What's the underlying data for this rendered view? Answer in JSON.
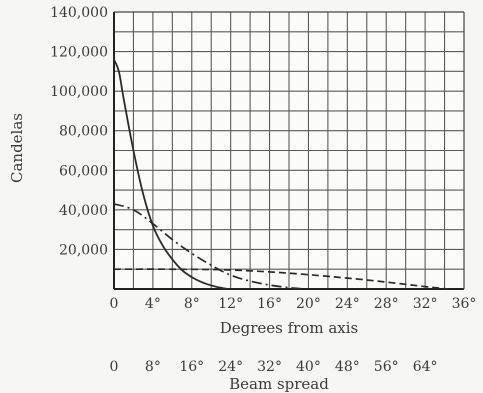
{
  "chart_data": {
    "type": "line",
    "title": "",
    "xlabel": "Degrees from axis",
    "ylabel": "Candelas",
    "secondary_xlabel": "Beam spread",
    "xlim": [
      0,
      36
    ],
    "ylim": [
      0,
      140000
    ],
    "x_ticks": [
      "0",
      "4°",
      "8°",
      "12°",
      "16°",
      "20°",
      "24°",
      "28°",
      "32°",
      "36°"
    ],
    "x_tick_values": [
      0,
      4,
      8,
      12,
      16,
      20,
      24,
      28,
      32,
      36
    ],
    "y_ticks": [
      "20,000",
      "40,000",
      "60,000",
      "80,000",
      "100,000",
      "120,000",
      "140,000"
    ],
    "y_tick_values": [
      20000,
      40000,
      60000,
      80000,
      100000,
      120000,
      140000
    ],
    "secondary_x_ticks": [
      "0",
      "8°",
      "16°",
      "24°",
      "32°",
      "40°",
      "48°",
      "56°",
      "64°"
    ],
    "secondary_x_tick_values": [
      0,
      4,
      8,
      12,
      16,
      20,
      24,
      28,
      32
    ],
    "grid": true,
    "grid_x_step": 2,
    "grid_y_step": 10000,
    "series": [
      {
        "style": "solid",
        "x": [
          0,
          0.5,
          1,
          2,
          3,
          4,
          5,
          6,
          7,
          8,
          9,
          10,
          11,
          11.7
        ],
        "y": [
          116000,
          110000,
          96000,
          70000,
          48000,
          32000,
          22000,
          15000,
          9500,
          6000,
          3500,
          1800,
          600,
          0
        ]
      },
      {
        "style": "dash-dot",
        "x": [
          0,
          2,
          4,
          6,
          8,
          10,
          12,
          14,
          16,
          18,
          19.6
        ],
        "y": [
          43000,
          40000,
          33000,
          25000,
          18000,
          12000,
          7000,
          4000,
          2000,
          700,
          0
        ]
      },
      {
        "style": "dashed",
        "x": [
          0,
          6,
          12,
          18,
          24,
          28,
          32,
          34.3
        ],
        "y": [
          10000,
          10000,
          9600,
          8000,
          5500,
          3500,
          1200,
          0
        ]
      }
    ]
  }
}
